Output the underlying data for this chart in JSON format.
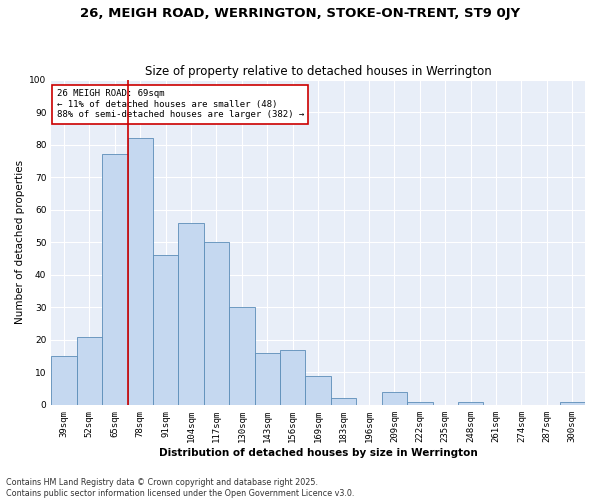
{
  "title1": "26, MEIGH ROAD, WERRINGTON, STOKE-ON-TRENT, ST9 0JY",
  "title2": "Size of property relative to detached houses in Werrington",
  "xlabel": "Distribution of detached houses by size in Werrington",
  "ylabel": "Number of detached properties",
  "categories": [
    "39sqm",
    "52sqm",
    "65sqm",
    "78sqm",
    "91sqm",
    "104sqm",
    "117sqm",
    "130sqm",
    "143sqm",
    "156sqm",
    "169sqm",
    "183sqm",
    "196sqm",
    "209sqm",
    "222sqm",
    "235sqm",
    "248sqm",
    "261sqm",
    "274sqm",
    "287sqm",
    "300sqm"
  ],
  "values": [
    15,
    21,
    77,
    82,
    46,
    56,
    50,
    30,
    16,
    17,
    9,
    2,
    0,
    4,
    1,
    0,
    1,
    0,
    0,
    0,
    1
  ],
  "bar_color": "#c5d8f0",
  "bar_edge_color": "#5b8db8",
  "vline_x": 2.5,
  "vline_color": "#cc0000",
  "annotation_text": "26 MEIGH ROAD: 69sqm\n← 11% of detached houses are smaller (48)\n88% of semi-detached houses are larger (382) →",
  "box_edge_color": "#cc0000",
  "background_color": "#e8eef8",
  "footer1": "Contains HM Land Registry data © Crown copyright and database right 2025.",
  "footer2": "Contains public sector information licensed under the Open Government Licence v3.0.",
  "ylim": [
    0,
    100
  ],
  "title1_fontsize": 9.5,
  "title2_fontsize": 8.5,
  "axis_label_fontsize": 7.5,
  "tick_fontsize": 6.5,
  "annotation_fontsize": 6.5,
  "footer_fontsize": 5.8
}
